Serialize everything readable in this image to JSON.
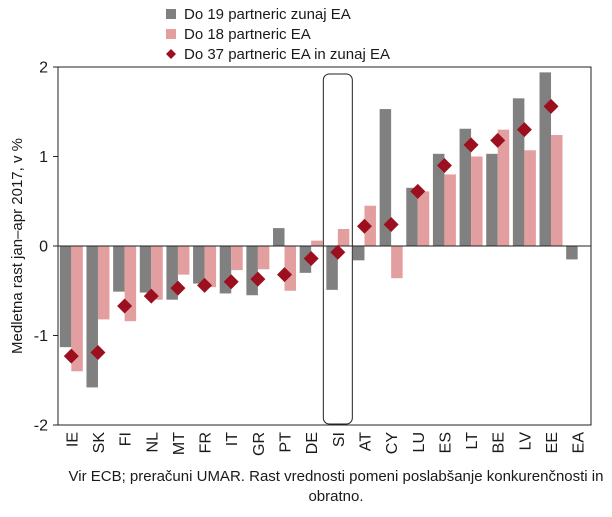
{
  "chart_data": {
    "type": "bar",
    "ylabel": "Medletna rast jan–apr 2017, v %",
    "ylim": [
      -2,
      2
    ],
    "yticks": [
      -2,
      -1,
      0,
      1,
      2
    ],
    "grid": false,
    "legend": "top-left",
    "highlight_category": "SI",
    "categories": [
      "IE",
      "SK",
      "FI",
      "NL",
      "MT",
      "FR",
      "IT",
      "GR",
      "PT",
      "DE",
      "SI",
      "AT",
      "CY",
      "LU",
      "ES",
      "LT",
      "BE",
      "LV",
      "EE",
      "EA"
    ],
    "series": [
      {
        "name": "Do 19 partneric zunaj EA",
        "type": "bar",
        "color": "#808080",
        "values": [
          -1.13,
          -1.58,
          -0.51,
          -0.52,
          -0.6,
          -0.42,
          -0.53,
          -0.55,
          0.2,
          -0.3,
          -0.49,
          -0.16,
          1.53,
          0.65,
          1.03,
          1.31,
          1.03,
          1.65,
          1.94,
          -0.15
        ]
      },
      {
        "name": "Do 18 partneric EA",
        "type": "bar",
        "color": "#e39f9f",
        "values": [
          -1.4,
          -0.82,
          -0.84,
          -0.6,
          -0.32,
          -0.46,
          -0.27,
          -0.26,
          -0.5,
          0.06,
          0.19,
          0.45,
          -0.36,
          0.61,
          0.8,
          1.0,
          1.3,
          1.07,
          1.24,
          null
        ]
      },
      {
        "name": "Do 37 partneric EA in zunaj EA",
        "type": "marker",
        "color": "#9b0f1e",
        "values": [
          -1.23,
          -1.19,
          -0.67,
          -0.56,
          -0.47,
          -0.44,
          -0.4,
          -0.37,
          -0.32,
          -0.14,
          -0.07,
          0.22,
          0.24,
          0.61,
          0.9,
          1.13,
          1.18,
          1.3,
          1.56,
          null
        ]
      }
    ]
  },
  "note": "Vir ECB; preračuni UMAR. Rast vrednosti pomeni poslabšanje konkurenčnosti in obratno."
}
